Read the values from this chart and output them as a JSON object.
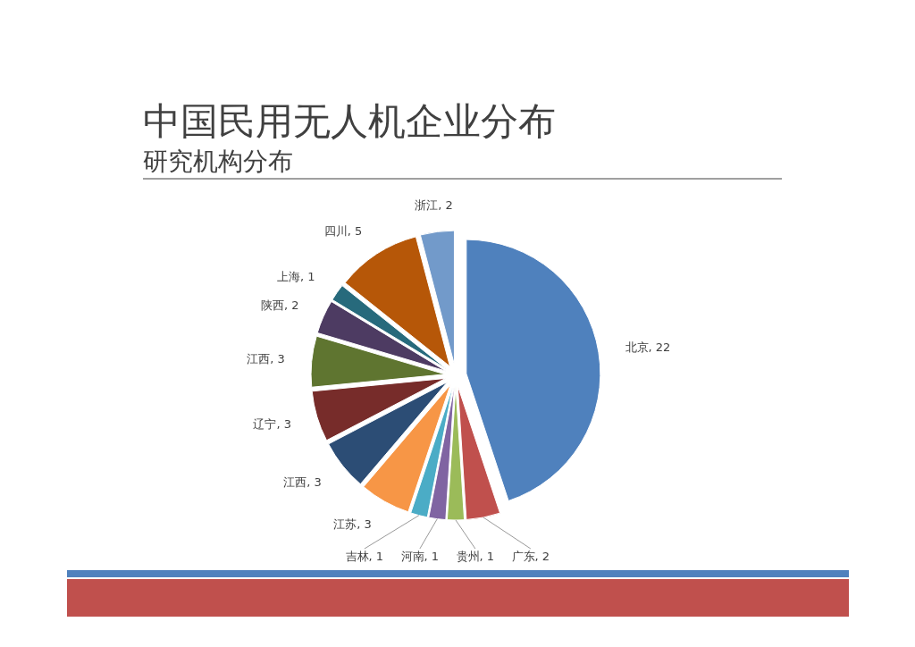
{
  "chart_data": {
    "type": "pie",
    "title": "中国民用无人机企业分布",
    "subtitle": "研究机构分布",
    "categories": [
      "北京",
      "广东",
      "贵州",
      "河南",
      "吉林",
      "江苏",
      "江西",
      "辽宁",
      "江西",
      "陕西",
      "上海",
      "四川",
      "浙江"
    ],
    "values": [
      22,
      2,
      1,
      1,
      1,
      3,
      3,
      3,
      3,
      2,
      1,
      5,
      2
    ],
    "colors": [
      "#4f81bd",
      "#c0504d",
      "#9bbb59",
      "#8064a2",
      "#4bacc6",
      "#f79646",
      "#2c4d75",
      "#772c2a",
      "#5f7530",
      "#4d3b62",
      "#276a7c",
      "#b65708",
      "#729aca"
    ],
    "value_labels": [
      ", 22",
      ", 2",
      ", 1",
      ", 1",
      ", 1",
      ", 3",
      ", 3",
      ", 3",
      ", 3",
      ", 2",
      ", 1",
      ", 5",
      ", 2"
    ]
  }
}
